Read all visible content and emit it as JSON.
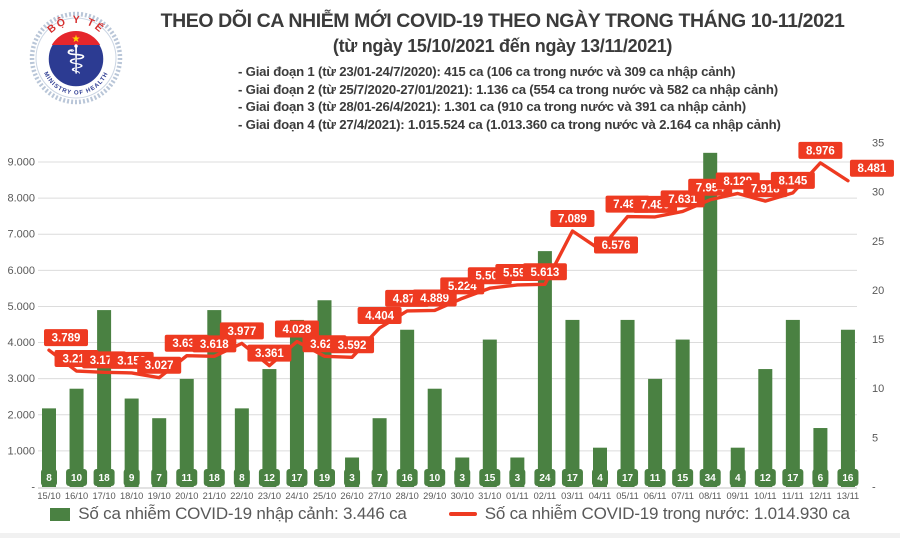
{
  "header": {
    "logo": {
      "top_text": "BỘ Y TẾ",
      "bottom_text": "MINISTRY OF HEALTH"
    },
    "title": "THEO DÕI CA NHIỄM MỚI COVID-19 THEO NGÀY TRONG THÁNG 10-11/2021",
    "subtitle": "(từ ngày 15/10/2021 đến ngày 13/11/2021)",
    "phases": [
      "- Giai đoạn 1 (từ 23/01-24/7/2020): 415 ca (106 ca trong nước và 309 ca nhập cảnh)",
      "- Giai đoạn 2 (từ 25/7/2020-27/01/2021): 1.136 ca (554 ca trong nước và 582 ca nhập cảnh)",
      "- Giai đoạn 3 (từ 28/01-26/4/2021): 1.301 ca (910 ca trong nước và 391 ca nhập cảnh)",
      "- Giai đoạn 4 (từ 27/4/2021): 1.015.524 ca (1.013.360 ca trong nước và 2.164 ca nhập cảnh)"
    ]
  },
  "chart_data": {
    "type": "combo-bar-line",
    "title": "THEO DÕI CA NHIỄM MỚI COVID-19 THEO NGÀY TRONG THÁNG 10-11/2021",
    "categories": [
      "15/10",
      "16/10",
      "17/10",
      "18/10",
      "19/10",
      "20/10",
      "21/10",
      "22/10",
      "23/10",
      "24/10",
      "25/10",
      "26/10",
      "27/10",
      "28/10",
      "29/10",
      "30/10",
      "31/10",
      "01/11",
      "02/11",
      "03/11",
      "04/11",
      "05/11",
      "06/11",
      "07/11",
      "08/11",
      "09/11",
      "10/11",
      "11/11",
      "12/11",
      "13/11"
    ],
    "series": [
      {
        "name": "Số ca nhiễm COVID-19 nhập cảnh",
        "type": "bar",
        "axis": "right",
        "color": "#4a8142",
        "values": [
          8,
          10,
          18,
          9,
          7,
          11,
          18,
          8,
          12,
          17,
          19,
          3,
          7,
          16,
          10,
          3,
          15,
          3,
          24,
          17,
          4,
          17,
          11,
          15,
          34,
          4,
          12,
          17,
          6,
          16
        ]
      },
      {
        "name": "Số ca nhiễm COVID-19 trong nước",
        "type": "line",
        "axis": "left",
        "color": "#ee3a21",
        "values": [
          3789,
          3211,
          3175,
          3159,
          3027,
          3635,
          3618,
          3977,
          3361,
          4028,
          3620,
          3592,
          4404,
          4876,
          4889,
          5224,
          5504,
          5595,
          5613,
          7089,
          6576,
          7487,
          7480,
          7631,
          7954,
          8129,
          7918,
          8145,
          8976,
          8481
        ],
        "labels": [
          "3.789",
          "3.211",
          "3.175",
          "3.159",
          "3.027",
          "3.635",
          "3.618",
          "3.977",
          "3.361",
          "4.028",
          "3.620",
          "3.592",
          "4.404",
          "4.876",
          "4.889",
          "5.224",
          "5.504",
          "5.595",
          "5.613",
          "7.089",
          "6.576",
          "7.487",
          "7.480",
          "7.631",
          "7.954",
          "8.129",
          "7.918",
          "8.145",
          "8.976",
          "8.481"
        ]
      }
    ],
    "left_axis": {
      "labels": [
        "9.000",
        "8.000",
        "7.000",
        "6.000",
        "5.000",
        "4.000",
        "3.000",
        "2.000",
        "1.000",
        "-"
      ],
      "values": [
        9000,
        8000,
        7000,
        6000,
        5000,
        4000,
        3000,
        2000,
        1000,
        0
      ]
    },
    "right_axis": {
      "labels": [
        "35",
        "30",
        "25",
        "20",
        "15",
        "10",
        "5",
        "-"
      ],
      "values": [
        35,
        30,
        25,
        20,
        15,
        10,
        5,
        0
      ],
      "max": 35
    },
    "grid": "horizontal",
    "legend_position": "bottom",
    "legend": [
      {
        "swatch": "bar",
        "label": "Số ca nhiễm COVID-19 nhập cảnh: 3.446 ca"
      },
      {
        "swatch": "line",
        "label": "Số ca nhiễm COVID-19 trong nước: 1.014.930 ca"
      }
    ],
    "colors": {
      "bar": "#4a8142",
      "line": "#ee3a21",
      "gridline": "#dcdcdc",
      "axis_text": "#595959",
      "title_text": "#3b3b3b"
    }
  }
}
